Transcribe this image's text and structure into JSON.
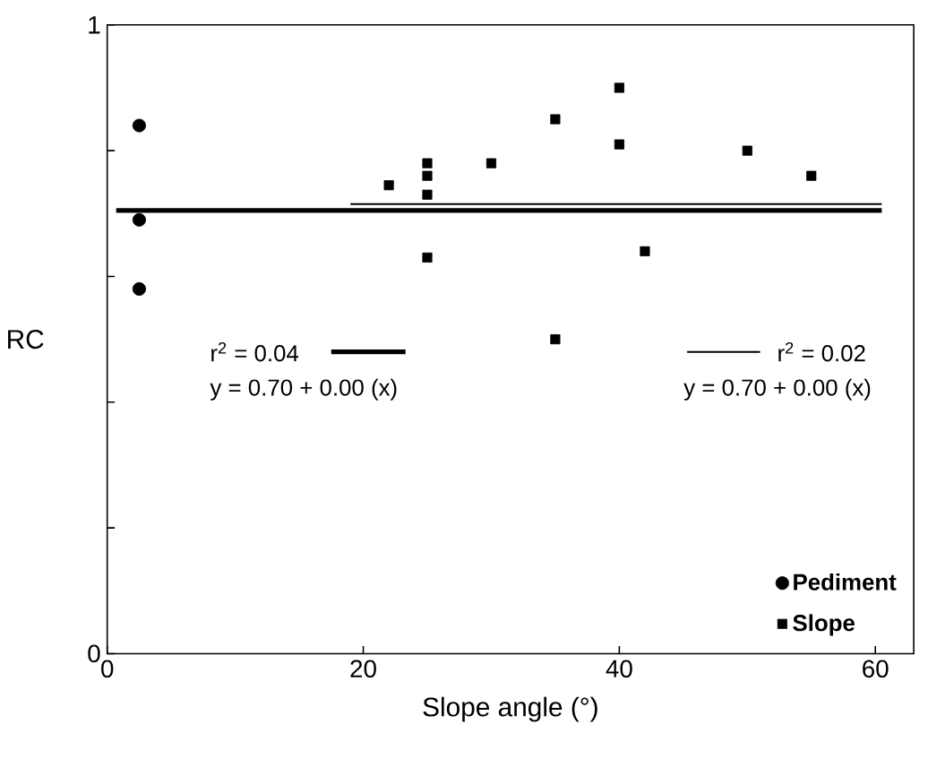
{
  "chart_data": {
    "type": "scatter",
    "xlabel": "Slope angle (°)",
    "ylabel": "RC",
    "xlim": [
      0,
      63
    ],
    "xticks": [
      0,
      20,
      40,
      60
    ],
    "ylim": [
      0,
      1
    ],
    "yticks": [
      0,
      {
        "value": 0.2,
        "label": null
      },
      {
        "value": 0.4,
        "label": null
      },
      {
        "value": 0.6,
        "label": null
      },
      {
        "value": 0.8,
        "label": null
      },
      1
    ],
    "legend": "bottom right",
    "grid": false,
    "series": [
      {
        "name": "Pediment",
        "marker": "circle",
        "color": "#000000",
        "x": [
          2.5,
          2.5,
          2.5
        ],
        "values": [
          0.84,
          0.69,
          0.58
        ]
      },
      {
        "name": "Slope",
        "marker": "square",
        "color": "#000000",
        "x": [
          22,
          25,
          25,
          25,
          25,
          30,
          35,
          35,
          40,
          40,
          42,
          50,
          55
        ],
        "values": [
          0.745,
          0.78,
          0.76,
          0.73,
          0.63,
          0.78,
          0.85,
          0.5,
          0.9,
          0.81,
          0.64,
          0.8,
          0.76
        ]
      },
      {
        "type": "line",
        "line_style": "solid",
        "color": "#000000",
        "x": [
          0.7,
          60.5
        ],
        "values": [
          0.705,
          0.705
        ]
      },
      {
        "type": "line",
        "line_style": "solid",
        "color": "#000000",
        "x": [
          19,
          60.5
        ],
        "values": [
          0.715,
          0.715
        ]
      }
    ],
    "annotations": [
      "r$^{2}$ = 0.04",
      "y = 0.70 + 0.00 (x)",
      "r$^{2}$ = 0.02",
      "y = 0.70 + 0.00 (x)"
    ]
  }
}
